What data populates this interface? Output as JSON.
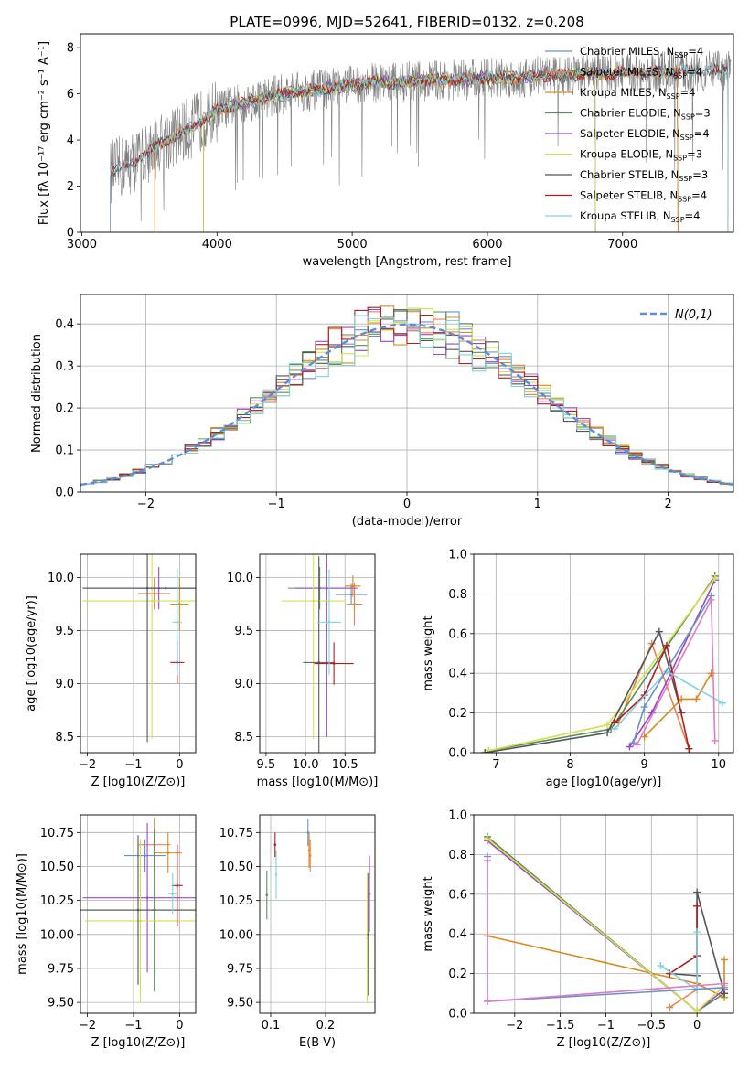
{
  "figure": {
    "title": "PLATE=0996, MJD=52641, FIBERID=0132, z=0.208"
  },
  "colors": {
    "chabrier_miles": "#6a8fd0",
    "salpeter_miles": "#e8834e",
    "kroupa_miles": "#d98a1c",
    "chabrier_elodie": "#5a8f5a",
    "salpeter_elodie": "#9a48c8",
    "kroupa_elodie": "#d6df4f",
    "chabrier_stelib": "#555555",
    "salpeter_stelib": "#b01e22",
    "kroupa_stelib": "#7fd3dd",
    "data": "#808080",
    "normal": "#5b8dd9",
    "weight_lines": [
      "#e8834e",
      "#d98a1c",
      "#5a8f5a",
      "#9a48c8",
      "#d6df4f",
      "#555555",
      "#b01e22",
      "#7fd3dd",
      "#6a8fd0",
      "#e07bc0"
    ]
  },
  "chart_data": [
    {
      "id": "spectrum",
      "type": "line",
      "title": "PLATE=0996, MJD=52641, FIBERID=0132, z=0.208",
      "xlabel": "wavelength [Angstrom, rest frame]",
      "ylabel": "Flux [fλ 10⁻¹⁷ erg cm⁻² s⁻¹ A⁻¹]",
      "xlim": [
        2990,
        7820
      ],
      "ylim": [
        0,
        8.6
      ],
      "xticks": [
        3000,
        4000,
        5000,
        6000,
        7000
      ],
      "yticks": [
        0,
        2,
        4,
        6,
        8
      ],
      "grid": false,
      "legend_position": "right",
      "data_continuum": {
        "x": [
          3210,
          3400,
          3600,
          3800,
          4000,
          4200,
          4400,
          4600,
          4800,
          5000,
          5200,
          5400,
          5600,
          5800,
          6000,
          6200,
          6400,
          6600,
          6800,
          7000,
          7200,
          7400,
          7600,
          7800
        ],
        "y": [
          2.6,
          3.1,
          3.9,
          4.5,
          5.3,
          5.6,
          5.9,
          6.1,
          6.2,
          6.4,
          6.5,
          6.5,
          6.6,
          6.6,
          6.7,
          6.7,
          6.8,
          6.8,
          6.9,
          6.9,
          6.9,
          7.0,
          7.0,
          7.0
        ]
      },
      "series": [
        {
          "label": "Chabrier MILES, N_SSP=4",
          "start": 3540,
          "end": 7410
        },
        {
          "label": "Salpeter MILES, N_SSP=4",
          "start": 3540,
          "end": 7410
        },
        {
          "label": "Kroupa MILES, N_SSP=4",
          "start": 3540,
          "end": 7410
        },
        {
          "label": "Chabrier ELODIE, N_SSP=3",
          "start": 3900,
          "end": 6800
        },
        {
          "label": "Salpeter ELODIE, N_SSP=4",
          "start": 3900,
          "end": 6800
        },
        {
          "label": "Kroupa ELODIE, N_SSP=3",
          "start": 3900,
          "end": 6800
        },
        {
          "label": "Chabrier STELIB, N_SSP=3",
          "start": 3210,
          "end": 7780
        },
        {
          "label": "Salpeter STELIB, N_SSP=4",
          "start": 3210,
          "end": 7780
        },
        {
          "label": "Kroupa STELIB, N_SSP=4",
          "start": 3210,
          "end": 7780
        }
      ]
    },
    {
      "id": "residuals",
      "type": "line",
      "xlabel": "(data-model)/error",
      "ylabel": "Normed distribution",
      "xlim": [
        -2.5,
        2.5
      ],
      "ylim": [
        0,
        0.47
      ],
      "xticks": [
        -2,
        -1,
        0,
        1,
        2
      ],
      "yticks": [
        0.0,
        0.1,
        0.2,
        0.3,
        0.4
      ],
      "grid": true,
      "legend_position": "top-right",
      "legend_label": "N(0,1)",
      "bin_width": 0.1
    },
    {
      "id": "age_vs_Z",
      "type": "scatter",
      "xlabel": "Z [log10(Z/Z⊙)]",
      "ylabel": "age  [log10(age/yr)]",
      "xlim": [
        -2.15,
        0.35
      ],
      "ylim": [
        8.35,
        10.22
      ],
      "xticks": [
        -2,
        -1,
        0
      ],
      "yticks": [
        8.5,
        9.0,
        9.5,
        10.0
      ],
      "grid": true,
      "points": [
        {
          "x": -0.6,
          "y": 9.9,
          "xerr": 1.5,
          "yerr": 0.0
        },
        {
          "x": -0.55,
          "y": 9.85,
          "xerr": 0.35,
          "yerr": 0.15
        },
        {
          "x": 0.0,
          "y": 9.75,
          "xerr": 0.2,
          "yerr": 0.25
        },
        {
          "x": -0.3,
          "y": 9.9,
          "xerr": 0.6,
          "yerr": 0.0
        },
        {
          "x": -0.45,
          "y": 9.9,
          "xerr": 1.55,
          "yerr": 0.2
        },
        {
          "x": -0.6,
          "y": 9.78,
          "xerr": 1.5,
          "yerr": 1.3
        },
        {
          "x": -0.7,
          "y": 9.9,
          "xerr": 1.4,
          "yerr": 1.45
        },
        {
          "x": -0.05,
          "y": 9.2,
          "xerr": 0.15,
          "yerr": 0.2
        },
        {
          "x": -0.05,
          "y": 9.58,
          "xerr": 0.1,
          "yerr": 0.5
        }
      ]
    },
    {
      "id": "age_vs_mass",
      "type": "scatter",
      "xlabel": "mass [log10(M/M⊙)]",
      "ylabel": "",
      "xlim": [
        9.42,
        10.88
      ],
      "ylim": [
        8.35,
        10.22
      ],
      "xticks": [
        9.5,
        10.0,
        10.5
      ],
      "yticks": [
        8.5,
        9.0,
        9.5,
        10.0
      ],
      "grid": true,
      "points": [
        {
          "x": 10.58,
          "y": 9.84,
          "xerr": 0.2,
          "yerr": 0.1
        },
        {
          "x": 10.62,
          "y": 9.75,
          "xerr": 0.1,
          "yerr": 0.2
        },
        {
          "x": 10.6,
          "y": 9.92,
          "xerr": 0.1,
          "yerr": 0.1
        },
        {
          "x": 10.18,
          "y": 9.9,
          "xerr": 0.4,
          "yerr": 0.2
        },
        {
          "x": 10.27,
          "y": 9.9,
          "xerr": 0.4,
          "yerr": 1.4
        },
        {
          "x": 10.1,
          "y": 9.78,
          "xerr": 0.4,
          "yerr": 1.3
        },
        {
          "x": 10.17,
          "y": 9.2,
          "xerr": 0.2,
          "yerr": 1.0
        },
        {
          "x": 10.36,
          "y": 9.19,
          "xerr": 0.25,
          "yerr": 0.2
        },
        {
          "x": 10.3,
          "y": 9.58,
          "xerr": 0.15,
          "yerr": 0.5
        }
      ]
    },
    {
      "id": "weight_vs_age",
      "type": "line",
      "xlabel": "age  [log10(age/yr)]",
      "ylabel": "mass weight",
      "xlim": [
        6.7,
        10.2
      ],
      "ylim": [
        0.0,
        1.0
      ],
      "xticks": [
        7,
        8,
        9,
        10
      ],
      "yticks": [
        0.0,
        0.2,
        0.4,
        0.6,
        0.8,
        1.0
      ],
      "grid": true,
      "series": [
        {
          "x": [
            8.65,
            9.1,
            9.6
          ],
          "y": [
            0.15,
            0.55,
            0.02
          ]
        },
        {
          "x": [
            9.0,
            9.5,
            9.7,
            9.9
          ],
          "y": [
            0.08,
            0.27,
            0.27,
            0.4
          ]
        },
        {
          "x": [
            6.9,
            8.55,
            9.95
          ],
          "y": [
            0.01,
            0.12,
            0.89
          ]
        },
        {
          "x": [
            8.8,
            9.1,
            9.95
          ],
          "y": [
            0.03,
            0.2,
            0.87
          ]
        },
        {
          "x": [
            6.9,
            8.5,
            9.95
          ],
          "y": [
            0.01,
            0.14,
            0.88
          ]
        },
        {
          "x": [
            6.85,
            8.5,
            9.2,
            9.5
          ],
          "y": [
            0.0,
            0.1,
            0.61,
            0.2
          ]
        },
        {
          "x": [
            8.6,
            9.0,
            9.3,
            9.6
          ],
          "y": [
            0.15,
            0.29,
            0.54,
            0.02
          ]
        },
        {
          "x": [
            8.6,
            9.3,
            10.05
          ],
          "y": [
            0.12,
            0.41,
            0.25
          ]
        },
        {
          "x": [
            8.85,
            9.0,
            9.9
          ],
          "y": [
            0.05,
            0.23,
            0.79
          ]
        },
        {
          "x": [
            8.9,
            9.9,
            9.95
          ],
          "y": [
            0.04,
            0.77,
            0.06
          ]
        }
      ]
    },
    {
      "id": "mass_vs_Z",
      "type": "scatter",
      "xlabel": "Z [log10(Z/Z⊙)]",
      "ylabel": "mass [log10(M/M⊙)]",
      "xlim": [
        -2.15,
        0.35
      ],
      "ylim": [
        9.42,
        10.88
      ],
      "xticks": [
        -2,
        -1,
        0
      ],
      "yticks": [
        9.5,
        9.75,
        10.0,
        10.25,
        10.5,
        10.75
      ],
      "grid": true,
      "points": [
        {
          "x": -0.75,
          "y": 10.58,
          "xerr": 0.45,
          "yerr": 0.12
        },
        {
          "x": -0.55,
          "y": 10.66,
          "xerr": 0.35,
          "yerr": 0.2
        },
        {
          "x": -0.25,
          "y": 10.6,
          "xerr": 0.3,
          "yerr": 0.15
        },
        {
          "x": -0.55,
          "y": 10.18,
          "xerr": 1.5,
          "yerr": 0.6
        },
        {
          "x": -0.7,
          "y": 10.27,
          "xerr": 1.4,
          "yerr": 0.55
        },
        {
          "x": -0.85,
          "y": 10.1,
          "xerr": 1.2,
          "yerr": 0.6
        },
        {
          "x": -0.9,
          "y": 10.18,
          "xerr": 1.25,
          "yerr": 0.55
        },
        {
          "x": -0.05,
          "y": 10.36,
          "xerr": 0.12,
          "yerr": 0.3
        },
        {
          "x": -0.15,
          "y": 10.3,
          "xerr": 0.1,
          "yerr": 0.15
        }
      ]
    },
    {
      "id": "mass_vs_EBV",
      "type": "scatter",
      "xlabel": "E(B-V)",
      "ylabel": "",
      "xlim": [
        0.08,
        0.29
      ],
      "ylim": [
        9.42,
        10.88
      ],
      "xticks": [
        0.1,
        0.2
      ],
      "yticks": [
        9.5,
        9.75,
        10.0,
        10.25,
        10.5,
        10.75
      ],
      "grid": true,
      "points": [
        {
          "x": 0.168,
          "y": 10.75,
          "xerr": 0,
          "yerr": 0.1
        },
        {
          "x": 0.172,
          "y": 10.58,
          "xerr": 0,
          "yerr": 0.12
        },
        {
          "x": 0.17,
          "y": 10.62,
          "xerr": 0,
          "yerr": 0.13
        },
        {
          "x": 0.093,
          "y": 10.29,
          "xerr": 0,
          "yerr": 0.18
        },
        {
          "x": 0.28,
          "y": 10.3,
          "xerr": 0,
          "yerr": 0.28
        },
        {
          "x": 0.276,
          "y": 9.97,
          "xerr": 0,
          "yerr": 0.48
        },
        {
          "x": 0.278,
          "y": 10.0,
          "xerr": 0,
          "yerr": 0.45
        },
        {
          "x": 0.108,
          "y": 10.66,
          "xerr": 0,
          "yerr": 0.09
        },
        {
          "x": 0.11,
          "y": 10.44,
          "xerr": 0,
          "yerr": 0.18
        }
      ]
    },
    {
      "id": "weight_vs_Z",
      "type": "line",
      "xlabel": "Z [log10(Z/Z⊙)]",
      "ylabel": "mass weight",
      "xlim": [
        -2.45,
        0.4
      ],
      "ylim": [
        0.0,
        1.0
      ],
      "xticks": [
        -2.0,
        -1.5,
        -1.0,
        -0.5,
        0.0
      ],
      "yticks": [
        0.0,
        0.2,
        0.4,
        0.6,
        0.8,
        1.0
      ],
      "grid": true,
      "series": [
        {
          "x": [
            -0.3,
            0.0,
            0.0
          ],
          "y": [
            0.03,
            0.12,
            0.54
          ]
        },
        {
          "x": [
            -2.3,
            0.0,
            0.3,
            0.3
          ],
          "y": [
            0.39,
            0.15,
            0.08,
            0.27
          ]
        },
        {
          "x": [
            -2.3,
            0.0,
            0.3
          ],
          "y": [
            0.89,
            0.01,
            0.1
          ]
        },
        {
          "x": [
            -2.3,
            0.0,
            0.3
          ],
          "y": [
            0.87,
            0.01,
            0.12
          ]
        },
        {
          "x": [
            -2.3,
            0.0,
            0.3
          ],
          "y": [
            0.88,
            0.01,
            0.14
          ]
        },
        {
          "x": [
            -0.3,
            0.0,
            0.0,
            0.3
          ],
          "y": [
            0.2,
            0.19,
            0.61,
            0.1
          ]
        },
        {
          "x": [
            -0.3,
            0.0,
            0.0
          ],
          "y": [
            0.2,
            0.29,
            0.54
          ]
        },
        {
          "x": [
            -0.4,
            0.0,
            0.0
          ],
          "y": [
            0.24,
            0.12,
            0.41
          ]
        },
        {
          "x": [
            -2.3,
            -2.3,
            0.3
          ],
          "y": [
            0.79,
            0.06,
            0.13
          ]
        },
        {
          "x": [
            -2.3,
            -2.3,
            0.3
          ],
          "y": [
            0.77,
            0.06,
            0.15
          ]
        }
      ]
    }
  ]
}
